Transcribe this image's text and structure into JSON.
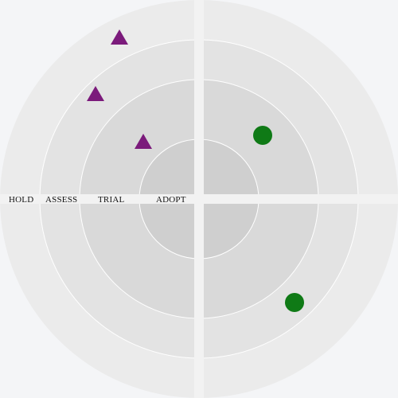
{
  "radar": {
    "rings": [
      {
        "label": "ADOPT",
        "color": "#cfcfcf"
      },
      {
        "label": "TRIAL",
        "color": "#d9d9d9"
      },
      {
        "label": "ASSESS",
        "color": "#e3e3e3"
      },
      {
        "label": "HOLD",
        "color": "#ebebeb"
      }
    ],
    "ring_border_color": "#ffffff",
    "axis_color": "#f2f2f2",
    "background": "#f4f5f7",
    "blips": [
      {
        "shape": "triangle",
        "color": "#7b1a7b"
      },
      {
        "shape": "triangle",
        "color": "#7b1a7b"
      },
      {
        "shape": "triangle",
        "color": "#7b1a7b"
      },
      {
        "shape": "circle",
        "color": "#0f7a16"
      },
      {
        "shape": "circle",
        "color": "#0f7a16"
      }
    ]
  }
}
